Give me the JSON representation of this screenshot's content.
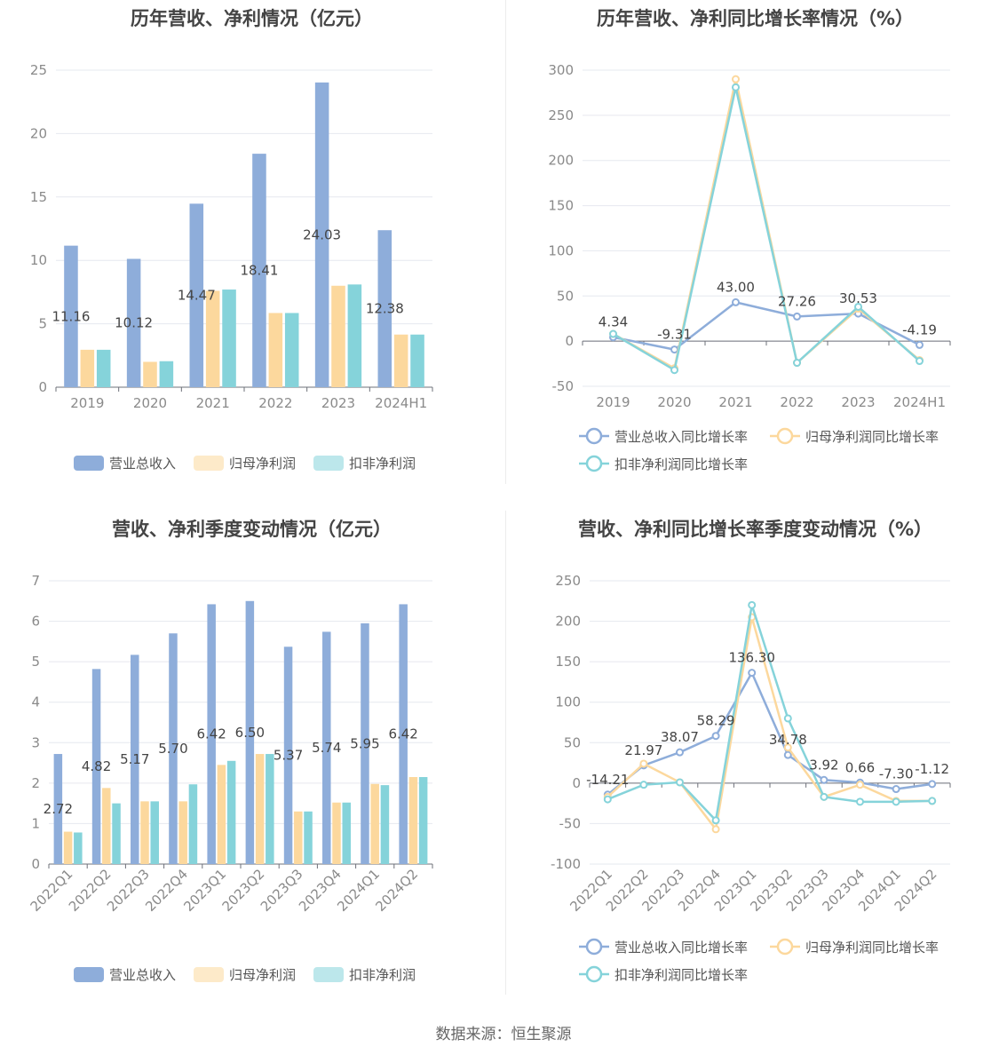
{
  "chart_data": [
    {
      "type": "bar",
      "title": "历年营收、净利情况（亿元）",
      "categories": [
        "2019",
        "2020",
        "2021",
        "2022",
        "2023",
        "2024H1"
      ],
      "series": [
        {
          "name": "营业总收入",
          "values": [
            11.16,
            10.12,
            14.47,
            18.41,
            24.03,
            12.38
          ],
          "color": "#8eadda",
          "show_labels": true
        },
        {
          "name": "归母净利润",
          "values": [
            2.95,
            2.0,
            7.6,
            5.85,
            8.0,
            4.15
          ],
          "color": "#fcd89d",
          "show_labels": false
        },
        {
          "name": "扣非净利润",
          "values": [
            2.95,
            2.05,
            7.7,
            5.85,
            8.1,
            4.15
          ],
          "color": "#85d3da",
          "show_labels": false
        }
      ],
      "ylim": [
        0,
        25
      ],
      "yticks": [
        0,
        5,
        10,
        15,
        20,
        25
      ],
      "grid": true,
      "legend_position": "bottom"
    },
    {
      "type": "line",
      "title": "历年营收、净利同比增长率情况（%）",
      "categories": [
        "2019",
        "2020",
        "2021",
        "2022",
        "2023",
        "2024H1"
      ],
      "series": [
        {
          "name": "营业总收入同比增长率",
          "values": [
            4.34,
            -9.31,
            43.0,
            27.26,
            30.53,
            -4.19
          ],
          "color": "#8eadda",
          "show_labels": true
        },
        {
          "name": "归母净利润同比增长率",
          "values": [
            8,
            -30,
            290,
            -24,
            36,
            -21
          ],
          "color": "#fcd89d",
          "show_labels": false
        },
        {
          "name": "扣非净利润同比增长率",
          "values": [
            8,
            -32,
            281,
            -24,
            38,
            -22
          ],
          "color": "#85d3da",
          "show_labels": false
        }
      ],
      "ylim": [
        -50,
        300
      ],
      "yticks": [
        -50,
        0,
        50,
        100,
        150,
        200,
        250,
        300
      ],
      "grid": true,
      "legend_position": "bottom"
    },
    {
      "type": "bar",
      "title": "营收、净利季度变动情况（亿元）",
      "categories": [
        "2022Q1",
        "2022Q2",
        "2022Q3",
        "2022Q4",
        "2023Q1",
        "2023Q2",
        "2023Q3",
        "2023Q4",
        "2024Q1",
        "2024Q2"
      ],
      "series": [
        {
          "name": "营业总收入",
          "values": [
            2.72,
            4.82,
            5.17,
            5.7,
            6.42,
            6.5,
            5.37,
            5.74,
            5.95,
            6.42
          ],
          "color": "#8eadda",
          "show_labels": true
        },
        {
          "name": "归母净利润",
          "values": [
            0.8,
            1.88,
            1.55,
            1.55,
            2.45,
            2.72,
            1.3,
            1.52,
            1.98,
            2.15
          ],
          "color": "#fcd89d",
          "show_labels": false
        },
        {
          "name": "扣非净利润",
          "values": [
            0.78,
            1.5,
            1.55,
            1.97,
            2.55,
            2.72,
            1.3,
            1.52,
            1.95,
            2.15
          ],
          "color": "#85d3da",
          "show_labels": false
        }
      ],
      "ylim": [
        0,
        7
      ],
      "yticks": [
        0,
        1,
        2,
        3,
        4,
        5,
        6,
        7
      ],
      "grid": true,
      "legend_position": "bottom"
    },
    {
      "type": "line",
      "title": "营收、净利同比增长率季度变动情况（%）",
      "categories": [
        "2022Q1",
        "2022Q2",
        "2022Q3",
        "2022Q4",
        "2023Q1",
        "2023Q2",
        "2023Q3",
        "2023Q4",
        "2024Q1",
        "2024Q2"
      ],
      "series": [
        {
          "name": "营业总收入同比增长率",
          "values": [
            -14.21,
            21.97,
            38.07,
            58.29,
            136.3,
            34.78,
            3.92,
            0.66,
            -7.3,
            -1.12
          ],
          "color": "#8eadda",
          "show_labels": true
        },
        {
          "name": "归母净利润同比增长率",
          "values": [
            -17,
            24,
            1,
            -57,
            205,
            44,
            -17,
            -2,
            -22,
            -22
          ],
          "color": "#fcd89d",
          "show_labels": false
        },
        {
          "name": "扣非净利润同比增长率",
          "values": [
            -20,
            -2,
            1,
            -46,
            220,
            80,
            -17,
            -23,
            -23,
            -22
          ],
          "color": "#85d3da",
          "show_labels": false
        }
      ],
      "ylim": [
        -100,
        250
      ],
      "yticks": [
        -100,
        -50,
        0,
        50,
        100,
        150,
        200,
        250
      ],
      "grid": true,
      "legend_position": "bottom"
    }
  ],
  "footer": {
    "source": "数据来源：恒生聚源"
  }
}
